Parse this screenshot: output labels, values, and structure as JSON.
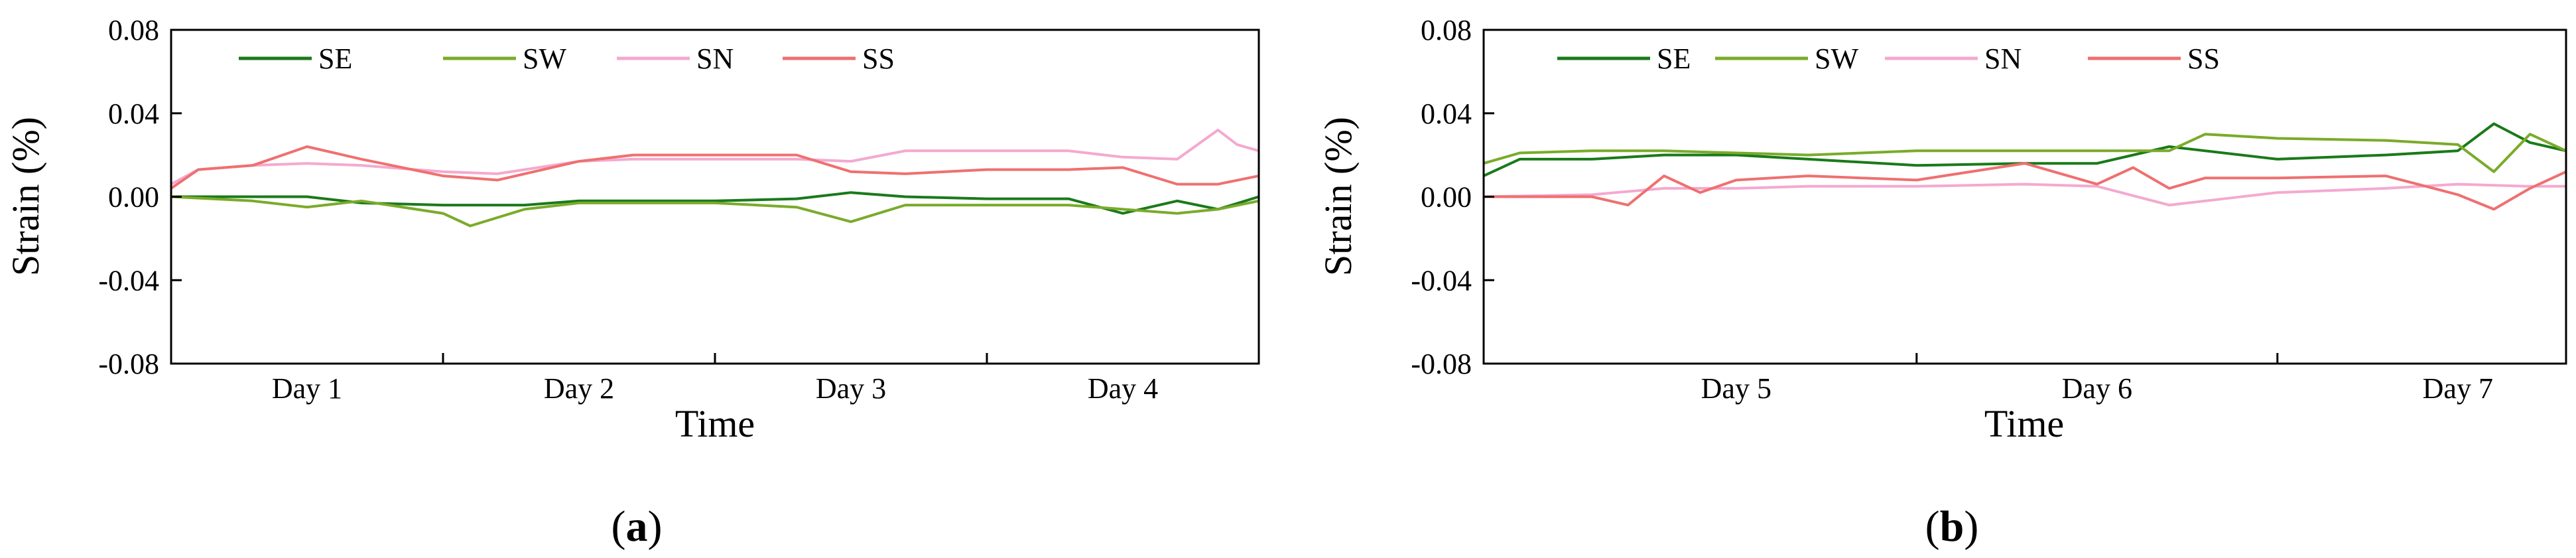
{
  "figure": {
    "panels": [
      {
        "label_open": "(",
        "label_letter": "a",
        "label_close": ")"
      },
      {
        "label_open": "(",
        "label_letter": "b",
        "label_close": ")"
      }
    ]
  },
  "chart_data": [
    {
      "type": "line",
      "title": "",
      "xlabel": "Time",
      "ylabel": "Strain (%)",
      "ylim": [
        -0.08,
        0.08
      ],
      "yticks": [
        "0.08",
        "0.04",
        "0.00",
        "-0.04",
        "-0.08"
      ],
      "xlim": [
        0.5,
        4.5
      ],
      "x_categories": [
        "Day 1",
        "Day 2",
        "Day 3",
        "Day 4"
      ],
      "grid": false,
      "legend_position": "top-left",
      "series": [
        {
          "name": "SE",
          "color": "#1a7a1a",
          "x": [
            0.5,
            0.8,
            1.0,
            1.2,
            1.5,
            1.8,
            2.0,
            2.2,
            2.5,
            2.8,
            3.0,
            3.2,
            3.5,
            3.8,
            4.0,
            4.2,
            4.35,
            4.5
          ],
          "y": [
            0.0,
            0.0,
            0.0,
            -0.003,
            -0.004,
            -0.004,
            -0.002,
            -0.002,
            -0.002,
            -0.001,
            0.002,
            0.0,
            -0.001,
            -0.001,
            -0.008,
            -0.002,
            -0.006,
            0.0
          ]
        },
        {
          "name": "SW",
          "color": "#7aab2a",
          "x": [
            0.5,
            0.8,
            1.0,
            1.2,
            1.5,
            1.6,
            1.8,
            2.0,
            2.2,
            2.5,
            2.8,
            3.0,
            3.2,
            3.5,
            3.8,
            4.0,
            4.2,
            4.35,
            4.5
          ],
          "y": [
            0.0,
            -0.002,
            -0.005,
            -0.002,
            -0.008,
            -0.014,
            -0.006,
            -0.003,
            -0.003,
            -0.003,
            -0.005,
            -0.012,
            -0.004,
            -0.004,
            -0.004,
            -0.006,
            -0.008,
            -0.006,
            -0.002
          ]
        },
        {
          "name": "SN",
          "color": "#f4a9cf",
          "x": [
            0.5,
            0.6,
            0.8,
            1.0,
            1.2,
            1.5,
            1.7,
            2.0,
            2.2,
            2.5,
            2.8,
            3.0,
            3.2,
            3.5,
            3.8,
            4.0,
            4.2,
            4.35,
            4.42,
            4.5
          ],
          "y": [
            0.006,
            0.013,
            0.015,
            0.016,
            0.015,
            0.012,
            0.011,
            0.017,
            0.018,
            0.018,
            0.018,
            0.017,
            0.022,
            0.022,
            0.022,
            0.019,
            0.018,
            0.032,
            0.025,
            0.022
          ]
        },
        {
          "name": "SS",
          "color": "#ef7070",
          "x": [
            0.5,
            0.6,
            0.8,
            1.0,
            1.2,
            1.5,
            1.7,
            2.0,
            2.2,
            2.5,
            2.8,
            3.0,
            3.2,
            3.5,
            3.8,
            4.0,
            4.2,
            4.35,
            4.5
          ],
          "y": [
            0.004,
            0.013,
            0.015,
            0.024,
            0.018,
            0.01,
            0.008,
            0.017,
            0.02,
            0.02,
            0.02,
            0.012,
            0.011,
            0.013,
            0.013,
            0.014,
            0.006,
            0.006,
            0.01
          ]
        }
      ]
    },
    {
      "type": "line",
      "title": "",
      "xlabel": "Time",
      "ylabel": "Strain (%)",
      "ylim": [
        -0.08,
        0.08
      ],
      "yticks": [
        "0.08",
        "0.04",
        "0.00",
        "-0.04",
        "-0.08"
      ],
      "xlim": [
        4.3,
        7.3
      ],
      "x_categories": [
        "Day 5",
        "Day 6",
        "Day 7"
      ],
      "grid": false,
      "legend_position": "top-left",
      "series": [
        {
          "name": "SE",
          "color": "#1a7a1a",
          "x": [
            4.3,
            4.4,
            4.6,
            4.8,
            5.0,
            5.2,
            5.5,
            5.8,
            6.0,
            6.2,
            6.5,
            6.8,
            7.0,
            7.1,
            7.2,
            7.3
          ],
          "y": [
            0.01,
            0.018,
            0.018,
            0.02,
            0.02,
            0.018,
            0.015,
            0.016,
            0.016,
            0.024,
            0.018,
            0.02,
            0.022,
            0.035,
            0.026,
            0.022
          ]
        },
        {
          "name": "SW",
          "color": "#7aab2a",
          "x": [
            4.3,
            4.4,
            4.6,
            4.8,
            5.0,
            5.2,
            5.5,
            5.8,
            6.0,
            6.2,
            6.3,
            6.5,
            6.8,
            7.0,
            7.1,
            7.2,
            7.3
          ],
          "y": [
            0.016,
            0.021,
            0.022,
            0.022,
            0.021,
            0.02,
            0.022,
            0.022,
            0.022,
            0.022,
            0.03,
            0.028,
            0.027,
            0.025,
            0.012,
            0.03,
            0.022
          ]
        },
        {
          "name": "SN",
          "color": "#f4a9cf",
          "x": [
            4.3,
            4.6,
            4.8,
            5.0,
            5.2,
            5.5,
            5.8,
            6.0,
            6.2,
            6.3,
            6.5,
            6.8,
            7.0,
            7.2,
            7.3
          ],
          "y": [
            0.0,
            0.001,
            0.004,
            0.004,
            0.005,
            0.005,
            0.006,
            0.005,
            -0.004,
            -0.002,
            0.002,
            0.004,
            0.006,
            0.005,
            0.005
          ]
        },
        {
          "name": "SS",
          "color": "#ef7070",
          "x": [
            4.3,
            4.6,
            4.7,
            4.8,
            4.9,
            5.0,
            5.2,
            5.5,
            5.8,
            6.0,
            6.1,
            6.2,
            6.3,
            6.5,
            6.8,
            7.0,
            7.1,
            7.2,
            7.3
          ],
          "y": [
            0.0,
            0.0,
            -0.004,
            0.01,
            0.002,
            0.008,
            0.01,
            0.008,
            0.016,
            0.006,
            0.014,
            0.004,
            0.009,
            0.009,
            0.01,
            0.001,
            -0.006,
            0.004,
            0.012
          ]
        }
      ]
    }
  ]
}
